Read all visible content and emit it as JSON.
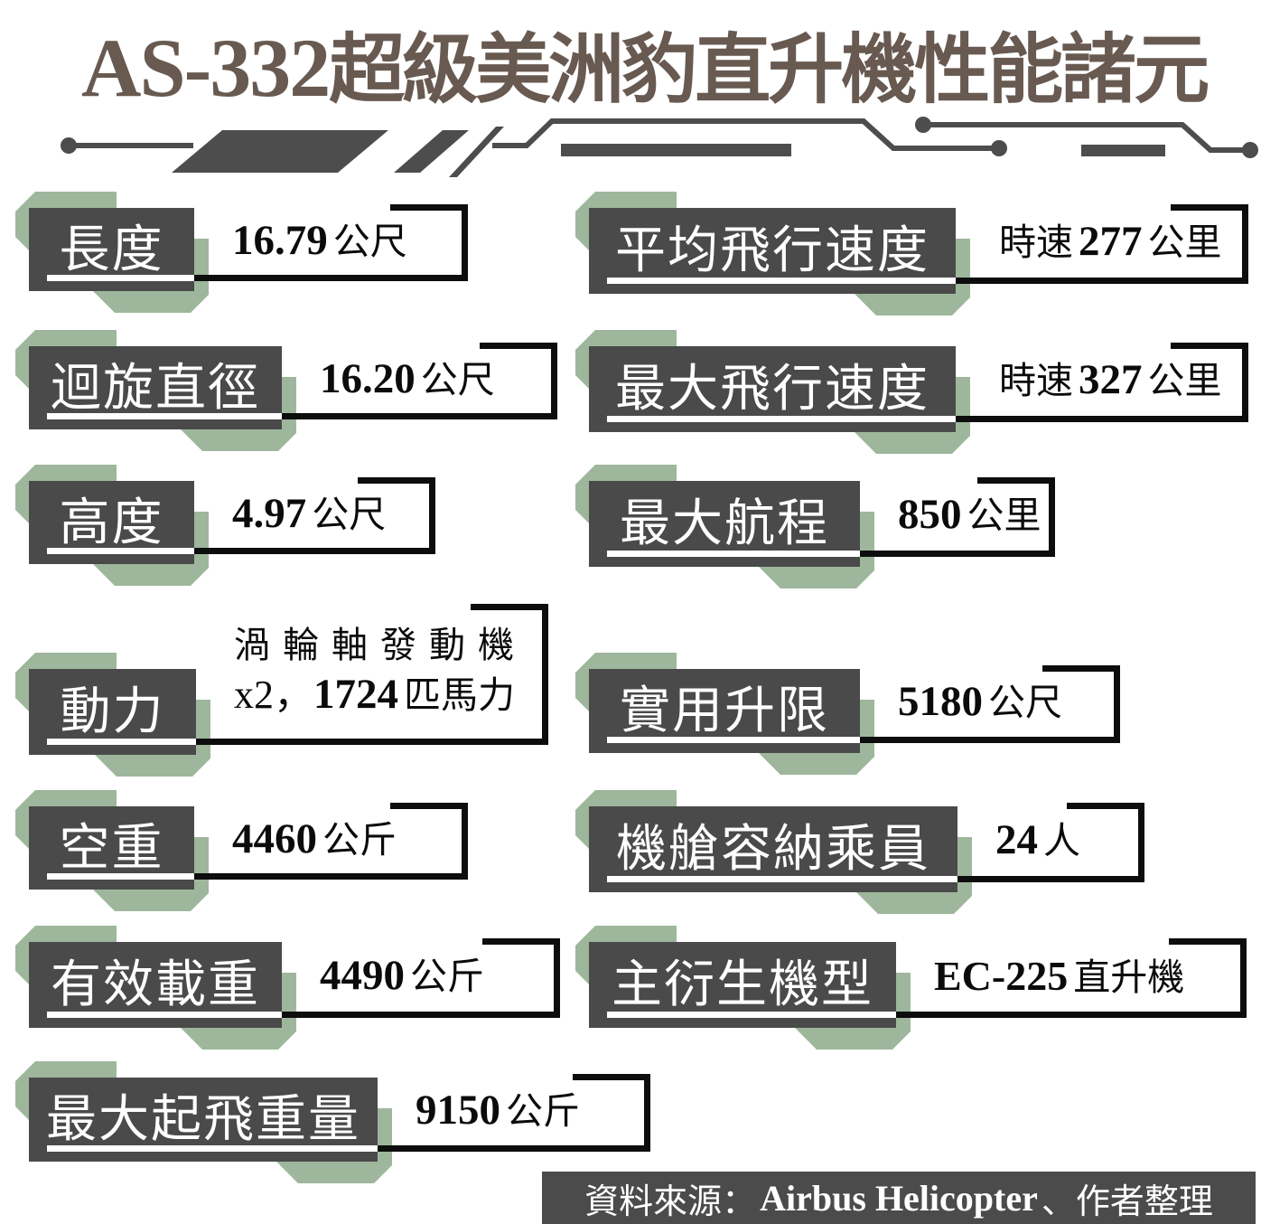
{
  "title": {
    "latin": "AS-332",
    "cjk": "超級美洲豹直升機性能諸元"
  },
  "colors": {
    "title_brown": "#685a51",
    "box_gray": "#4a4a4a",
    "accent_green": "#9eb79c",
    "divider_gray": "#4d4d4d",
    "line_black": "#0d0d0d"
  },
  "specs": [
    {
      "id": "length",
      "label": "長度",
      "lines": [
        [
          {
            "k": "num",
            "v": "16.79"
          },
          {
            "k": "cjk",
            "v": "公尺"
          }
        ]
      ]
    },
    {
      "id": "rotor_diameter",
      "label": "迴旋直徑",
      "lines": [
        [
          {
            "k": "num",
            "v": "16.20"
          },
          {
            "k": "cjk",
            "v": "公尺"
          }
        ]
      ]
    },
    {
      "id": "height",
      "label": "高度",
      "lines": [
        [
          {
            "k": "num",
            "v": "4.97"
          },
          {
            "k": "cjk",
            "v": "公尺"
          }
        ]
      ]
    },
    {
      "id": "power",
      "label": "動力",
      "lines": [
        [
          {
            "k": "cjksp",
            "v": "渦輪軸發動機"
          }
        ],
        [
          {
            "k": "lat",
            "v": "x2，"
          },
          {
            "k": "num",
            "v": "1724"
          },
          {
            "k": "cjk",
            "v": "匹馬力"
          }
        ]
      ]
    },
    {
      "id": "empty_weight",
      "label": "空重",
      "lines": [
        [
          {
            "k": "num",
            "v": "4460"
          },
          {
            "k": "cjk",
            "v": "公斤"
          }
        ]
      ]
    },
    {
      "id": "payload",
      "label": "有效載重",
      "lines": [
        [
          {
            "k": "num",
            "v": "4490"
          },
          {
            "k": "cjk",
            "v": "公斤"
          }
        ]
      ]
    },
    {
      "id": "max_takeoff_weight",
      "label": "最大起飛重量",
      "lines": [
        [
          {
            "k": "num",
            "v": "9150"
          },
          {
            "k": "cjk",
            "v": "公斤"
          }
        ]
      ]
    },
    {
      "id": "average_speed",
      "label": "平均飛行速度",
      "lines": [
        [
          {
            "k": "cjk",
            "v": "時速"
          },
          {
            "k": "num",
            "v": "277"
          },
          {
            "k": "cjk",
            "v": "公里"
          }
        ]
      ]
    },
    {
      "id": "max_speed",
      "label": "最大飛行速度",
      "lines": [
        [
          {
            "k": "cjk",
            "v": "時速"
          },
          {
            "k": "num",
            "v": "327"
          },
          {
            "k": "cjk",
            "v": "公里"
          }
        ]
      ]
    },
    {
      "id": "max_range",
      "label": "最大航程",
      "lines": [
        [
          {
            "k": "num",
            "v": "850"
          },
          {
            "k": "cjk",
            "v": "公里"
          }
        ]
      ]
    },
    {
      "id": "service_ceiling",
      "label": "實用升限",
      "lines": [
        [
          {
            "k": "num",
            "v": "5180"
          },
          {
            "k": "cjk",
            "v": "公尺"
          }
        ]
      ]
    },
    {
      "id": "cabin_capacity",
      "label": "機艙容納乘員",
      "lines": [
        [
          {
            "k": "num",
            "v": "24"
          },
          {
            "k": "cjk",
            "v": "人"
          }
        ]
      ]
    },
    {
      "id": "main_derivative",
      "label": "主衍生機型",
      "lines": [
        [
          {
            "k": "latb",
            "v": "EC-225"
          },
          {
            "k": "cjk",
            "v": "直升機"
          }
        ]
      ]
    }
  ],
  "source": {
    "parts": [
      {
        "k": "cjk",
        "v": "資料來源："
      },
      {
        "k": "lat",
        "v": "Airbus Helicopter"
      },
      {
        "k": "cjk",
        "v": "、作者整理"
      }
    ]
  }
}
